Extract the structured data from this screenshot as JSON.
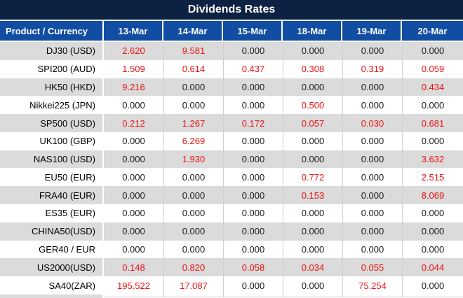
{
  "title": "Dividends Rates",
  "table": {
    "columns": [
      "Product / Currency",
      "13-Mar",
      "14-Mar",
      "15-Mar",
      "18-Mar",
      "19-Mar",
      "20-Mar"
    ],
    "rows": [
      {
        "product": "DJ30 (USD)",
        "values": [
          "2.620",
          "9.581",
          "0.000",
          "0.000",
          "0.000",
          "0.000"
        ]
      },
      {
        "product": "SPI200 (AUD)",
        "values": [
          "1.509",
          "0.614",
          "0.437",
          "0.308",
          "0.319",
          "0.059"
        ]
      },
      {
        "product": "HK50 (HKD)",
        "values": [
          "9.216",
          "0.000",
          "0.000",
          "0.000",
          "0.000",
          "0.434"
        ]
      },
      {
        "product": "Nikkei225 (JPN)",
        "values": [
          "0.000",
          "0.000",
          "0.000",
          "0.500",
          "0.000",
          "0.000"
        ]
      },
      {
        "product": "SP500 (USD)",
        "values": [
          "0.212",
          "1.267",
          "0.172",
          "0.057",
          "0.030",
          "0.681"
        ]
      },
      {
        "product": "UK100 (GBP)",
        "values": [
          "0.000",
          "6.269",
          "0.000",
          "0.000",
          "0.000",
          "0.000"
        ]
      },
      {
        "product": "NAS100 (USD)",
        "values": [
          "0.000",
          "1.930",
          "0.000",
          "0.000",
          "0.000",
          "3.632"
        ]
      },
      {
        "product": "EU50 (EUR)",
        "values": [
          "0.000",
          "0.000",
          "0.000",
          "0.772",
          "0.000",
          "2.515"
        ]
      },
      {
        "product": "FRA40 (EUR)",
        "values": [
          "0.000",
          "0.000",
          "0.000",
          "0.153",
          "0.000",
          "8.069"
        ]
      },
      {
        "product": "ES35 (EUR)",
        "values": [
          "0.000",
          "0.000",
          "0.000",
          "0.000",
          "0.000",
          "0.000"
        ]
      },
      {
        "product": "CHINA50(USD)",
        "values": [
          "0.000",
          "0.000",
          "0.000",
          "0.000",
          "0.000",
          "0.000"
        ]
      },
      {
        "product": "GER40 / EUR",
        "values": [
          "0.000",
          "0.000",
          "0.000",
          "0.000",
          "0.000",
          "0.000"
        ]
      },
      {
        "product": "US2000(USD)",
        "values": [
          "0.148",
          "0.820",
          "0.058",
          "0.034",
          "0.055",
          "0.044"
        ]
      },
      {
        "product": "SA40(ZAR)",
        "values": [
          "195.522",
          "17.087",
          "0.000",
          "0.000",
          "75.254",
          "0.000"
        ]
      }
    ]
  },
  "colors": {
    "title_bg": "#0D2142",
    "header_bg": "#114DA3",
    "row_bg": "#FFFFFF",
    "row_alt_bg": "#DBDBDB",
    "value_zero": "#1A1A1A",
    "value_nonzero": "#EE1111"
  },
  "chart_data": {
    "type": "table",
    "title": "Dividends Rates",
    "columns": [
      "Product / Currency",
      "13-Mar",
      "14-Mar",
      "15-Mar",
      "18-Mar",
      "19-Mar",
      "20-Mar"
    ],
    "rows": [
      [
        "DJ30 (USD)",
        2.62,
        9.581,
        0.0,
        0.0,
        0.0,
        0.0
      ],
      [
        "SPI200 (AUD)",
        1.509,
        0.614,
        0.437,
        0.308,
        0.319,
        0.059
      ],
      [
        "HK50 (HKD)",
        9.216,
        0.0,
        0.0,
        0.0,
        0.0,
        0.434
      ],
      [
        "Nikkei225 (JPN)",
        0.0,
        0.0,
        0.0,
        0.5,
        0.0,
        0.0
      ],
      [
        "SP500 (USD)",
        0.212,
        1.267,
        0.172,
        0.057,
        0.03,
        0.681
      ],
      [
        "UK100 (GBP)",
        0.0,
        6.269,
        0.0,
        0.0,
        0.0,
        0.0
      ],
      [
        "NAS100 (USD)",
        0.0,
        1.93,
        0.0,
        0.0,
        0.0,
        3.632
      ],
      [
        "EU50 (EUR)",
        0.0,
        0.0,
        0.0,
        0.772,
        0.0,
        2.515
      ],
      [
        "FRA40 (EUR)",
        0.0,
        0.0,
        0.0,
        0.153,
        0.0,
        8.069
      ],
      [
        "ES35 (EUR)",
        0.0,
        0.0,
        0.0,
        0.0,
        0.0,
        0.0
      ],
      [
        "CHINA50(USD)",
        0.0,
        0.0,
        0.0,
        0.0,
        0.0,
        0.0
      ],
      [
        "GER40 / EUR",
        0.0,
        0.0,
        0.0,
        0.0,
        0.0,
        0.0
      ],
      [
        "US2000(USD)",
        0.148,
        0.82,
        0.058,
        0.034,
        0.055,
        0.044
      ],
      [
        "SA40(ZAR)",
        195.522,
        17.087,
        0.0,
        0.0,
        75.254,
        0.0
      ]
    ],
    "value_color_rule": "non-zero values shown in red, zeros in dark grey/black",
    "layout": "alternating row shading starting grey, header row blue, title bar dark navy"
  }
}
